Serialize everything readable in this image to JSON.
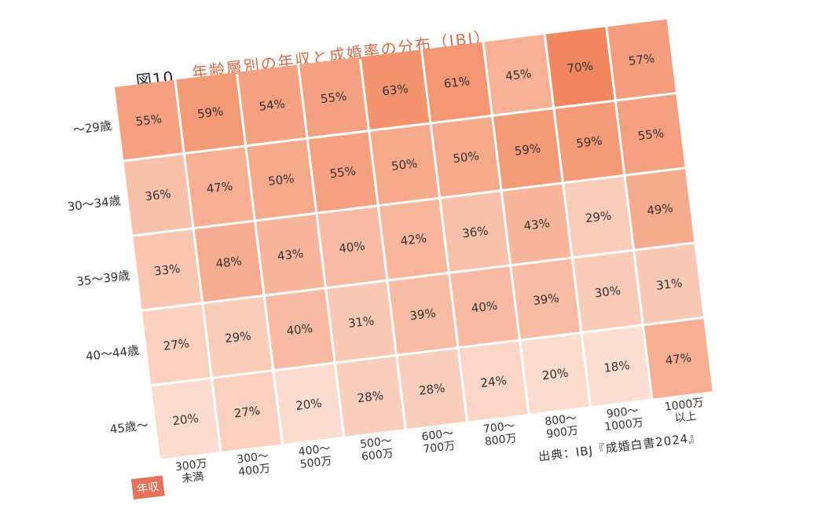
{
  "figure_label": "図10",
  "title": "年齢層別の年収と成婚率の分布（IBJ）",
  "source": "出典：IBJ『成婚白書2024』",
  "axis_badge": "年収",
  "colors": {
    "low": "#fde4d9",
    "high": "#f2875f",
    "grid": "#ffffff",
    "title": "#e06a45",
    "badge": "#e8715a"
  },
  "chart_data": {
    "type": "heatmap",
    "title": "年齢層別の年収と成婚率の分布（IBJ）",
    "rows": [
      "〜29歳",
      "30〜34歳",
      "35〜39歳",
      "40〜44歳",
      "45歳〜"
    ],
    "columns": [
      "300万\n未満",
      "300〜\n400万",
      "400〜\n500万",
      "500〜\n600万",
      "600〜\n700万",
      "700〜\n800万",
      "800〜\n900万",
      "900〜\n1000万",
      "1000万\n以上"
    ],
    "values": [
      [
        55,
        59,
        54,
        55,
        63,
        61,
        45,
        70,
        57
      ],
      [
        36,
        47,
        50,
        55,
        50,
        50,
        59,
        59,
        55
      ],
      [
        33,
        48,
        43,
        40,
        42,
        36,
        43,
        29,
        49
      ],
      [
        27,
        29,
        40,
        31,
        39,
        40,
        39,
        30,
        31
      ],
      [
        20,
        27,
        20,
        28,
        28,
        24,
        20,
        18,
        47
      ]
    ],
    "unit": "%"
  }
}
